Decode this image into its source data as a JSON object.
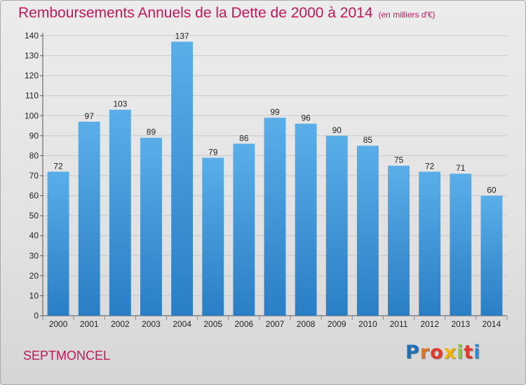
{
  "title": "Remboursements Annuels de la Dette de 2000 à 2014",
  "subtitle": "(en milliers d'€)",
  "commune": "SEPTMONCEL",
  "brand": {
    "text": "Proxiti",
    "letter_colors": [
      "#1f6fb5",
      "#e8731e",
      "#e33a2e",
      "#f2b400",
      "#8cc63f",
      "#e33a2e",
      "#2a8bd6"
    ]
  },
  "chart_data": {
    "type": "bar",
    "categories": [
      "2000",
      "2001",
      "2002",
      "2003",
      "2004",
      "2005",
      "2006",
      "2007",
      "2008",
      "2009",
      "2010",
      "2011",
      "2012",
      "2013",
      "2014"
    ],
    "values": [
      72,
      97,
      103,
      89,
      137,
      79,
      86,
      99,
      96,
      90,
      85,
      75,
      72,
      71,
      60
    ],
    "title": "Remboursements Annuels de la Dette de 2000 à 2014",
    "subtitle": "(en milliers d'€)",
    "ylim": [
      0,
      140
    ],
    "yticks": [
      0,
      10,
      20,
      30,
      40,
      50,
      60,
      70,
      80,
      90,
      100,
      110,
      120,
      130,
      140
    ],
    "grid": true,
    "bar_color_top": "#5aaee8",
    "bar_color_bottom": "#2a7ec4"
  }
}
